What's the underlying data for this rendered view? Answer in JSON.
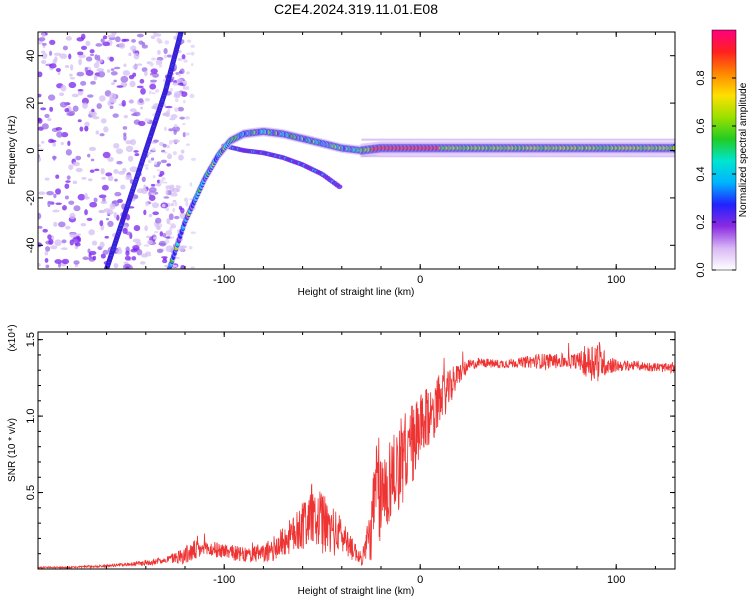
{
  "title": "C2E4.2024.319.11.01.E08",
  "chart_data": [
    {
      "type": "heatmap",
      "xlabel": "Height of straight line (km)",
      "ylabel": "Frequency (Hz)",
      "xlim": [
        -195,
        130
      ],
      "ylim": [
        -50,
        50
      ],
      "xticks": [
        -100,
        0,
        100
      ],
      "yticks": [
        -40,
        -20,
        0,
        20,
        40
      ],
      "colorbar": {
        "label": "Normalized spectral amplitude",
        "range": [
          0,
          1
        ],
        "ticks": [
          "0.0",
          "0.2",
          "0.4",
          "0.6",
          "0.8"
        ],
        "colors": [
          "#ffffff",
          "#d9b8f5",
          "#8a2be2",
          "#2222ff",
          "#00b4ff",
          "#00e5d0",
          "#22cc22",
          "#9be000",
          "#ffe000",
          "#ff8800",
          "#ff2020",
          "#ff0080"
        ]
      },
      "traces": [
        {
          "name": "steep_noise_streak",
          "x": [
            -160,
            -150,
            -140,
            -130,
            -122
          ],
          "y": [
            -50,
            -25,
            0,
            25,
            50
          ]
        },
        {
          "name": "rising_arc",
          "x": [
            -128,
            -120,
            -110,
            -103,
            -97,
            -90,
            -80,
            -70,
            -60,
            -50,
            -40,
            -30,
            -20,
            -10,
            0,
            10,
            20,
            40,
            60,
            80,
            100,
            130
          ],
          "y": [
            -50,
            -30,
            -12,
            -2,
            4,
            7,
            8,
            7,
            5,
            3,
            1,
            0,
            1,
            1,
            1,
            1,
            1,
            1,
            1,
            1,
            1,
            1
          ]
        },
        {
          "name": "lower_branch",
          "x": [
            -100,
            -90,
            -80,
            -70,
            -60,
            -50,
            -40
          ],
          "y": [
            2,
            0,
            -1,
            -3,
            -6,
            -10,
            -16
          ]
        }
      ]
    },
    {
      "type": "line",
      "xlabel": "Height of straight line (km)",
      "ylabel": "SNR (10 * v/v)",
      "y_multiplier": "(x10⁴)",
      "xlim": [
        -195,
        130
      ],
      "ylim": [
        0,
        1.55
      ],
      "xticks": [
        -100,
        0,
        100
      ],
      "yticks": [
        0.5,
        1.0,
        1.5
      ],
      "color": "#ee3333",
      "x": [
        -195,
        -180,
        -160,
        -150,
        -140,
        -130,
        -120,
        -115,
        -110,
        -100,
        -90,
        -80,
        -75,
        -70,
        -65,
        -60,
        -55,
        -50,
        -45,
        -40,
        -35,
        -30,
        -25,
        -22,
        -20,
        -15,
        -10,
        -5,
        0,
        5,
        10,
        15,
        20,
        25,
        30,
        40,
        50,
        60,
        70,
        80,
        85,
        90,
        95,
        100,
        110,
        120,
        130
      ],
      "y": [
        0.01,
        0.01,
        0.02,
        0.03,
        0.04,
        0.06,
        0.09,
        0.12,
        0.13,
        0.12,
        0.09,
        0.1,
        0.13,
        0.18,
        0.22,
        0.3,
        0.35,
        0.3,
        0.25,
        0.22,
        0.15,
        0.06,
        0.25,
        0.55,
        0.45,
        0.6,
        0.7,
        0.8,
        0.9,
        1.0,
        1.1,
        1.18,
        1.28,
        1.33,
        1.35,
        1.34,
        1.35,
        1.36,
        1.36,
        1.36,
        1.35,
        1.37,
        1.34,
        1.33,
        1.33,
        1.32,
        1.31
      ],
      "noise": [
        0.005,
        0.005,
        0.008,
        0.01,
        0.02,
        0.02,
        0.06,
        0.07,
        0.05,
        0.05,
        0.05,
        0.06,
        0.08,
        0.1,
        0.12,
        0.17,
        0.2,
        0.2,
        0.17,
        0.12,
        0.08,
        0.04,
        0.2,
        0.4,
        0.3,
        0.28,
        0.3,
        0.28,
        0.24,
        0.2,
        0.16,
        0.12,
        0.07,
        0.04,
        0.03,
        0.03,
        0.03,
        0.05,
        0.05,
        0.05,
        0.1,
        0.16,
        0.07,
        0.04,
        0.03,
        0.03,
        0.03
      ]
    }
  ]
}
